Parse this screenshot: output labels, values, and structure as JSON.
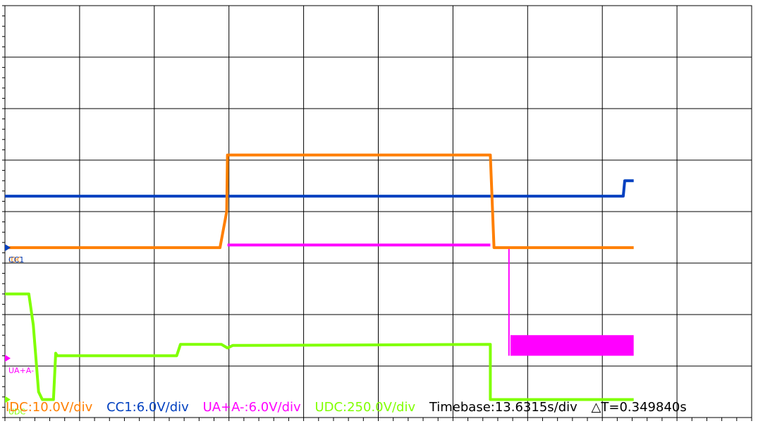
{
  "chart_data": {
    "type": "line",
    "title": "",
    "grid": true,
    "x": {
      "divisions": 10,
      "unit": "div"
    },
    "y": {
      "divisions": 8,
      "unit": "div"
    },
    "series": [
      {
        "name": "IDC",
        "marker_label": "IDC",
        "color": "#ff7f00",
        "points": [
          [
            0,
            3.3
          ],
          [
            2.88,
            3.3
          ],
          [
            2.97,
            4.0
          ],
          [
            2.98,
            5.1
          ],
          [
            3.1,
            5.1
          ],
          [
            6.5,
            5.1
          ],
          [
            6.55,
            3.3
          ],
          [
            8.42,
            3.3
          ]
        ]
      },
      {
        "name": "CC1",
        "marker_label": "CC1",
        "color": "#0040c0",
        "points": [
          [
            0,
            4.3
          ],
          [
            8.28,
            4.3
          ],
          [
            8.3,
            4.6
          ],
          [
            8.42,
            4.6
          ]
        ]
      },
      {
        "name": "UA+A-",
        "marker_label": "UA+A-",
        "color": "#ff00ff",
        "points": [
          [
            2.98,
            3.35
          ],
          [
            6.5,
            3.35
          ]
        ],
        "drop": [
          [
            6.75,
            3.3
          ],
          [
            6.75,
            1.2
          ]
        ],
        "band": [
          6.77,
          8.42,
          1.2,
          1.6
        ]
      },
      {
        "name": "UDC",
        "marker_label": "UDC",
        "color": "#80ff00",
        "points": [
          [
            0,
            2.4
          ],
          [
            0.32,
            2.4
          ],
          [
            0.38,
            1.8
          ],
          [
            0.45,
            0.5
          ],
          [
            0.5,
            0.35
          ],
          [
            0.65,
            0.35
          ],
          [
            0.68,
            1.25
          ],
          [
            0.7,
            1.2
          ],
          [
            2.3,
            1.2
          ],
          [
            2.35,
            1.42
          ],
          [
            2.9,
            1.42
          ],
          [
            2.98,
            1.35
          ],
          [
            3.05,
            1.4
          ],
          [
            6.5,
            1.42
          ],
          [
            6.5,
            0.35
          ],
          [
            8.42,
            0.35
          ]
        ]
      }
    ]
  },
  "status_bar": {
    "items": [
      {
        "text": "IDC:10.0V/div",
        "color": "#ff7f00"
      },
      {
        "text": "CC1:6.0V/div",
        "color": "#0040c0"
      },
      {
        "text": "UA+A-:6.0V/div",
        "color": "#ff00ff"
      },
      {
        "text": "UDC:250.0V/div",
        "color": "#80ff00"
      },
      {
        "text": "Timebase:13.6315s/div",
        "color": "#000000"
      },
      {
        "text": "△T=0.349840s",
        "color": "#000000"
      }
    ]
  }
}
